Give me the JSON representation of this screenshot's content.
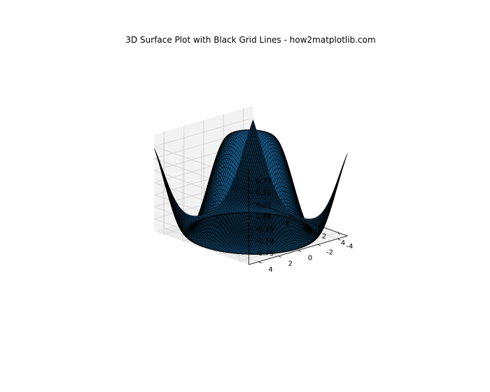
{
  "chart_data": {
    "type": "surface3d",
    "title": "3D Surface Plot with Black Grid Lines - how2matplotlib.com",
    "function": "z = sin(sqrt(x^2 + y^2))",
    "x_range": [
      -5,
      5
    ],
    "y_range": [
      -5,
      5
    ],
    "zlim": [
      -1,
      1
    ],
    "grid_points": 100,
    "x_ticks": [
      "-4",
      "-2",
      "0",
      "2",
      "4"
    ],
    "y_ticks": [
      "-4",
      "-2",
      "0",
      "2",
      "4"
    ],
    "z_ticks": [
      "-0.75",
      "-0.50",
      "-0.25",
      "0.00",
      "0.25",
      "0.50",
      "0.75"
    ],
    "x_tick_values": [
      -4,
      -2,
      0,
      2,
      4
    ],
    "y_tick_values": [
      -4,
      -2,
      0,
      2,
      4
    ],
    "z_tick_values": [
      -0.75,
      -0.5,
      -0.25,
      0,
      0.25,
      0.5,
      0.75
    ],
    "surface_color": "#1f77b4",
    "edge_color": "#000000",
    "pane_color": "#f2f2f2",
    "grid": true
  }
}
